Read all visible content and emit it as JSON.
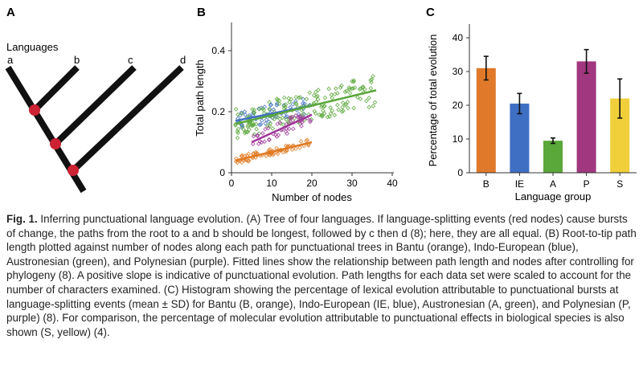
{
  "figure": {
    "panelA": {
      "letter": "A",
      "languages_label": "Languages",
      "leaves": [
        "a",
        "b",
        "c",
        "d"
      ],
      "node_color": "#cc2233"
    },
    "panelB": {
      "letter": "B",
      "xlabel": "Number of nodes",
      "ylabel": "Total path length",
      "xticks": [
        "0",
        "10",
        "20",
        "30",
        "40"
      ],
      "yticks": [
        "0",
        "0.2",
        "0.4"
      ]
    },
    "panelC": {
      "letter": "C",
      "xlabel": "Language group",
      "ylabel": "Percentage of total evolution",
      "yticks": [
        "0",
        "10",
        "20",
        "30",
        "40"
      ]
    }
  },
  "chart_data": [
    {
      "type": "scatter",
      "xlabel": "Number of nodes",
      "ylabel": "Total path length",
      "xlim": [
        0,
        40
      ],
      "ylim": [
        0,
        0.5
      ],
      "series": [
        {
          "color": "#e07a22",
          "fit": {
            "x": [
              1,
              20
            ],
            "y": [
              0.04,
              0.1
            ]
          }
        },
        {
          "color": "#3f6fc3",
          "fit": {
            "x": [
              1,
              20
            ],
            "y": [
              0.17,
              0.22
            ]
          }
        },
        {
          "color": "#5aa73a",
          "fit": {
            "x": [
              1,
              36
            ],
            "y": [
              0.16,
              0.27
            ]
          }
        },
        {
          "color": "#a0379a",
          "fit": {
            "x": [
              5,
              20
            ],
            "y": [
              0.1,
              0.19
            ]
          }
        }
      ]
    },
    {
      "type": "bar",
      "categories": [
        "B",
        "IE",
        "A",
        "P",
        "S"
      ],
      "values": [
        31,
        20.5,
        9.5,
        33,
        22
      ],
      "errors": [
        3.5,
        3,
        0.8,
        3.5,
        5.8
      ],
      "colors": [
        "#e07a2a",
        "#3f6fc3",
        "#5aa73a",
        "#a0377f",
        "#f0cf3a"
      ],
      "xlabel": "Language group",
      "ylabel": "Percentage of total evolution",
      "ylim": [
        0,
        45
      ]
    }
  ],
  "caption": {
    "label": "Fig. 1.",
    "text": " Inferring punctuational language evolution. (A) Tree of four languages. If language-splitting events (red nodes) cause bursts of change, the paths from the root to a and b should be longest, followed by c then d (8); here, they are all equal. (B) Root-to-tip path length plotted against number of nodes along each path for punctuational trees in Bantu (orange), Indo-European (blue), Austronesian (green), and Polynesian (purple). Fitted lines show the relationship between path length and nodes after controlling for phylogeny (8). A positive slope is indicative of punctuational evolution. Path lengths for each data set were scaled to account for the number of characters examined. (C) Histogram showing the percentage of lexical evolution attributable to punctuational bursts at language-splitting events (mean ± SD) for Bantu (B, orange), Indo-European (IE, blue), Austronesian (A, green), and Polynesian (P, purple) (8). For comparison, the percentage of molecular evolution attributable to punctuational effects in biological species is also shown (S, yellow) (4)."
  }
}
